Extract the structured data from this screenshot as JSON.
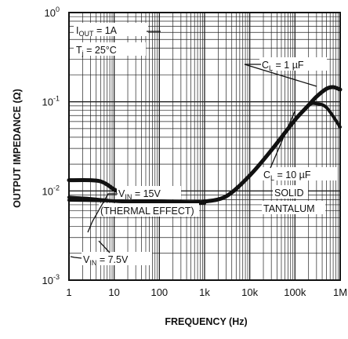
{
  "chart_data": {
    "type": "line",
    "title": "",
    "xlabel": "FREQUENCY (Hz)",
    "ylabel": "OUTPUT IMPEDANCE (Ω)",
    "x_scale": "log",
    "y_scale": "log",
    "xlim": [
      1,
      1000000
    ],
    "ylim": [
      0.001,
      1
    ],
    "grid": true,
    "x_ticks": [
      {
        "value": 1,
        "label": "1"
      },
      {
        "value": 10,
        "label": "10"
      },
      {
        "value": 100,
        "label": "100"
      },
      {
        "value": 1000,
        "label": "1k"
      },
      {
        "value": 10000,
        "label": "10k"
      },
      {
        "value": 100000,
        "label": "100k"
      },
      {
        "value": 1000000,
        "label": "1M"
      }
    ],
    "y_ticks": [
      {
        "value": 1,
        "base": "10",
        "exp": "0"
      },
      {
        "value": 0.1,
        "base": "10",
        "exp": "-1"
      },
      {
        "value": 0.01,
        "base": "10",
        "exp": "-2"
      },
      {
        "value": 0.001,
        "base": "10",
        "exp": "-3"
      }
    ],
    "conditions": [
      {
        "main": "I",
        "sub": "OUT",
        "rest": " = 1A"
      },
      {
        "main": "T",
        "sub": "j",
        "rest": " = 25°C"
      }
    ],
    "labels": [
      {
        "main": "V",
        "sub": "IN",
        "rest": " = 15V"
      },
      {
        "text": "(THERMAL EFFECT)"
      },
      {
        "main": "V",
        "sub": "IN",
        "rest": " = 7.5V"
      },
      {
        "main": "C",
        "sub": "L",
        "rest": " = 1 µF"
      },
      {
        "main": "C",
        "sub": "L",
        "rest": " = 10 µF"
      },
      {
        "text": "SOLID"
      },
      {
        "text": "TANTALUM"
      }
    ],
    "series": [
      {
        "key": "vin15",
        "x": [
          1,
          3,
          5,
          7,
          10,
          20,
          40,
          100,
          300,
          700,
          1000,
          3000,
          10000,
          30000,
          100000,
          200000,
          300000,
          500000,
          700000,
          1000000
        ],
        "y": [
          0.0132,
          0.0132,
          0.0128,
          0.0118,
          0.0104,
          0.0087,
          0.0079,
          0.0076,
          0.0075,
          0.0075,
          0.0076,
          0.0087,
          0.0149,
          0.0286,
          0.0625,
          0.0914,
          0.114,
          0.14,
          0.146,
          0.137
        ]
      },
      {
        "key": "vin7_5",
        "x": [
          1,
          5,
          10,
          30,
          100,
          300,
          700,
          1000,
          3000,
          10000,
          30000,
          100000,
          200000,
          300000,
          500000,
          1000000
        ],
        "y": [
          0.0079,
          0.0078,
          0.0077,
          0.0076,
          0.0075,
          0.0075,
          0.0075,
          0.0076,
          0.0087,
          0.0149,
          0.0286,
          0.0625,
          0.0914,
          0.095,
          0.086,
          0.052
        ]
      },
      {
        "key": "lower_edge",
        "x": [
          1,
          3,
          10,
          30,
          100,
          300,
          1000
        ],
        "y": [
          0.0085,
          0.0082,
          0.0077,
          0.0074,
          0.0072,
          0.0072,
          0.0073
        ]
      }
    ]
  }
}
